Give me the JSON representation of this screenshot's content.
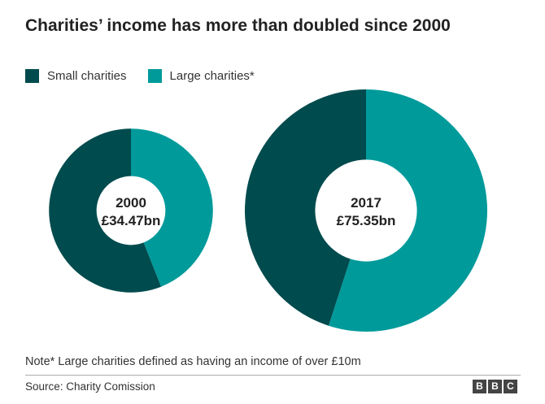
{
  "title": "Charities’ income has more than doubled since 2000",
  "legend": [
    {
      "label": "Small charities",
      "color": "#004b4d"
    },
    {
      "label": "Large charities*",
      "color": "#009a9b"
    }
  ],
  "note": "Note* Large charities defined as having an income of over £10m",
  "source": "Source: Charity Comission",
  "logo": [
    "B",
    "B",
    "C"
  ],
  "chart_data": {
    "type": "pie",
    "title": "Charities’ income has more than doubled since 2000",
    "series_names": [
      "Small charities",
      "Large charities*"
    ],
    "colors": [
      "#004b4d",
      "#009a9b"
    ],
    "legend_position": "top-left",
    "charts": [
      {
        "year_label": "2000",
        "total_label": "£34.47bn",
        "total": 34.47,
        "shares": {
          "Small charities": 0.56,
          "Large charities*": 0.44
        }
      },
      {
        "year_label": "2017",
        "total_label": "£75.35bn",
        "total": 75.35,
        "shares": {
          "Small charities": 0.45,
          "Large charities*": 0.55
        }
      }
    ]
  }
}
